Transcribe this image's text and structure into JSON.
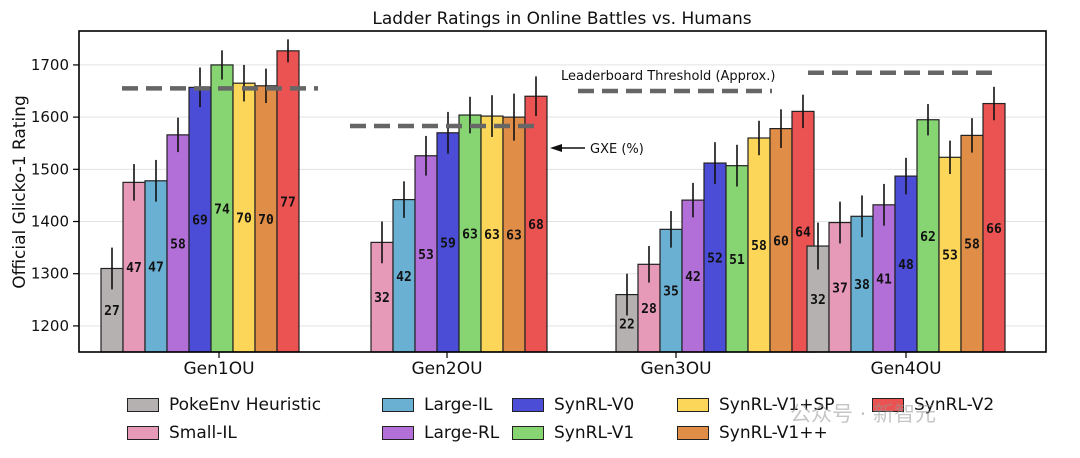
{
  "chart_data": {
    "type": "bar",
    "title": "Ladder Ratings in Online Battles vs. Humans",
    "ylabel": "Official Glicko-1 Rating",
    "xlabel": "",
    "ylim": [
      1150,
      1765
    ],
    "yticks": [
      1200,
      1300,
      1400,
      1500,
      1600,
      1700
    ],
    "grid": true,
    "categories": [
      "Gen1OU",
      "Gen2OU",
      "Gen3OU",
      "Gen4OU"
    ],
    "series": [
      {
        "name": "PokeEnv Heuristic",
        "color": "#b5b1b1",
        "values": [
          1310,
          null,
          1260,
          1353
        ],
        "err": [
          40,
          null,
          40,
          45
        ],
        "labels": [
          "27",
          null,
          "22",
          "32"
        ]
      },
      {
        "name": "Small-IL",
        "color": "#e79ab8",
        "values": [
          1475,
          1360,
          1318,
          1398
        ],
        "err": [
          35,
          40,
          35,
          40
        ],
        "labels": [
          "47",
          "32",
          "28",
          "37"
        ]
      },
      {
        "name": "Large-IL",
        "color": "#6ab0d3",
        "values": [
          1478,
          1442,
          1385,
          1410
        ],
        "err": [
          40,
          35,
          35,
          40
        ],
        "labels": [
          "47",
          "42",
          "35",
          "38"
        ]
      },
      {
        "name": "Large-RL",
        "color": "#b36fd8",
        "values": [
          1566,
          1526,
          1441,
          1432
        ],
        "err": [
          33,
          38,
          33,
          40
        ],
        "labels": [
          "58",
          "53",
          "42",
          "41"
        ]
      },
      {
        "name": "SynRL-V0",
        "color": "#4b4dd6",
        "values": [
          1657,
          1570,
          1512,
          1487
        ],
        "err": [
          38,
          40,
          40,
          35
        ],
        "labels": [
          "69",
          "59",
          "52",
          "48"
        ]
      },
      {
        "name": "SynRL-V1",
        "color": "#86d472",
        "values": [
          1700,
          1604,
          1507,
          1595
        ],
        "err": [
          28,
          35,
          40,
          30
        ],
        "labels": [
          "74",
          "63",
          "51",
          "62"
        ]
      },
      {
        "name": "SynRL-V1+SP",
        "color": "#fbd658",
        "values": [
          1665,
          1602,
          1560,
          1523
        ],
        "err": [
          35,
          40,
          33,
          32
        ],
        "labels": [
          "70",
          "63",
          "58",
          "53"
        ]
      },
      {
        "name": "SynRL-V1++",
        "color": "#e08d48",
        "values": [
          1660,
          1600,
          1578,
          1565
        ],
        "err": [
          33,
          45,
          37,
          33
        ],
        "labels": [
          "70",
          "63",
          "60",
          "58"
        ]
      },
      {
        "name": "SynRL-V2",
        "color": "#eb5353",
        "values": [
          1727,
          1640,
          1611,
          1626
        ],
        "err": [
          22,
          38,
          32,
          32
        ],
        "labels": [
          "77",
          "68",
          "64",
          "66"
        ]
      }
    ],
    "thresholds": [
      1655,
      1583,
      1650,
      1685
    ],
    "annotations": {
      "threshold_label": "Leaderboard Threshold (Approx.)",
      "gxe_label": "GXE (%)"
    },
    "legend": {
      "placement": "bottom",
      "rows": [
        [
          "PokeEnv Heuristic",
          "Large-IL",
          "SynRL-V0",
          "SynRL-V1+SP",
          "SynRL-V2"
        ],
        [
          "Small-IL",
          "Large-RL",
          "SynRL-V1",
          "SynRL-V1++"
        ]
      ]
    }
  },
  "watermark": "公众号 · 新智元"
}
